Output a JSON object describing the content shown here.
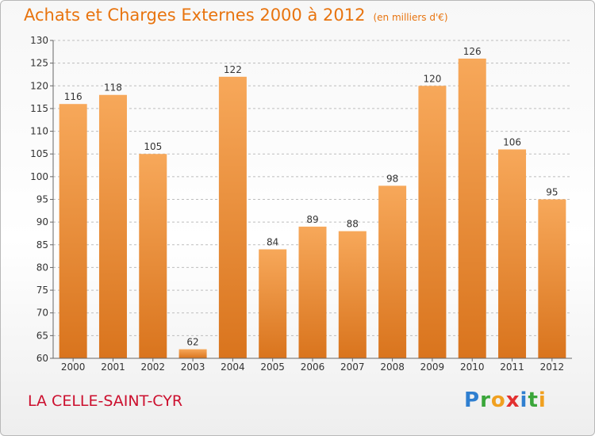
{
  "title": "Achats et Charges Externes 2000 à 2012",
  "subtitle": "(en milliers d'€)",
  "location": "LA CELLE-SAINT-CYR",
  "logo": {
    "text": "Proxiti",
    "letters": [
      {
        "ch": "P",
        "color": "#2f7fd0"
      },
      {
        "ch": "r",
        "color": "#3aa63a"
      },
      {
        "ch": "o",
        "color": "#f0a020"
      },
      {
        "ch": "x",
        "color": "#e23030"
      },
      {
        "ch": "i",
        "color": "#2f7fd0"
      },
      {
        "ch": "t",
        "color": "#3aa63a"
      },
      {
        "ch": "i",
        "color": "#f0a020"
      }
    ]
  },
  "colors": {
    "bar_top": "#f7a85a",
    "bar_bottom": "#d9741d",
    "title": "#e8740f",
    "location": "#cc0f2e",
    "grid": "#bdbdbd"
  },
  "chart_data": {
    "type": "bar",
    "categories": [
      "2000",
      "2001",
      "2002",
      "2003",
      "2004",
      "2005",
      "2006",
      "2007",
      "2008",
      "2009",
      "2010",
      "2011",
      "2012"
    ],
    "values": [
      116,
      118,
      105,
      62,
      122,
      84,
      89,
      88,
      98,
      120,
      126,
      106,
      95
    ],
    "title": "Achats et Charges Externes 2000 à 2012",
    "subtitle": "(en milliers d'€)",
    "ylim": [
      60,
      130
    ],
    "yticks": [
      60,
      65,
      70,
      75,
      80,
      85,
      90,
      95,
      100,
      105,
      110,
      115,
      120,
      125,
      130
    ],
    "grid": true,
    "data_labels": true
  }
}
